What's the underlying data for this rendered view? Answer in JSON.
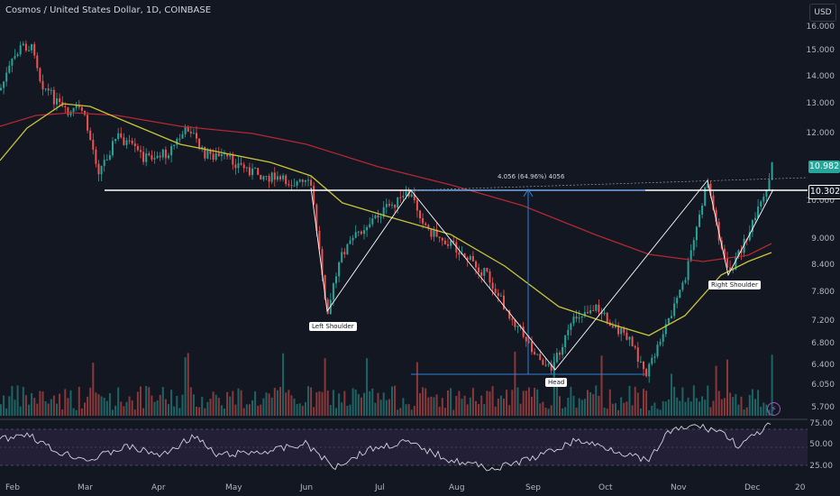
{
  "header": {
    "symbol_title": "Cosmos / United States Dollar, 1D, COINBASE",
    "currency_button": "USD"
  },
  "price_axis": [
    "16.000",
    "15.000",
    "14.000",
    "13.000",
    "12.000",
    "10.000",
    "9.000",
    "8.400",
    "7.800",
    "7.200",
    "6.800",
    "6.400",
    "6.050",
    "5.700"
  ],
  "price_tags": {
    "last_price": "10.982",
    "neckline_price": "10.302",
    "last_color": "#26a69a",
    "neckline_color": "#131722"
  },
  "time_axis": [
    "Feb",
    "Mar",
    "Apr",
    "May",
    "Jun",
    "Jul",
    "Aug",
    "Sep",
    "Oct",
    "Nov",
    "Dec",
    "20"
  ],
  "annotations": {
    "left_shoulder": "Left Shoulder",
    "head": "Head",
    "right_shoulder": "Right Shoulder",
    "measure": "4.056 (64.96%) 4056"
  },
  "rsi_axis": [
    "75.00",
    "50.00",
    "25.00"
  ],
  "colors": {
    "up": "#26a69a",
    "down": "#ef5350",
    "ma_fast": "#c9c53a",
    "ma_slow": "#b22833",
    "measure": "#2f7fd8",
    "rsi": "#d1d4dc",
    "rsi_band": "#2a2340"
  },
  "icons": {
    "alert": "lightning-icon"
  }
}
